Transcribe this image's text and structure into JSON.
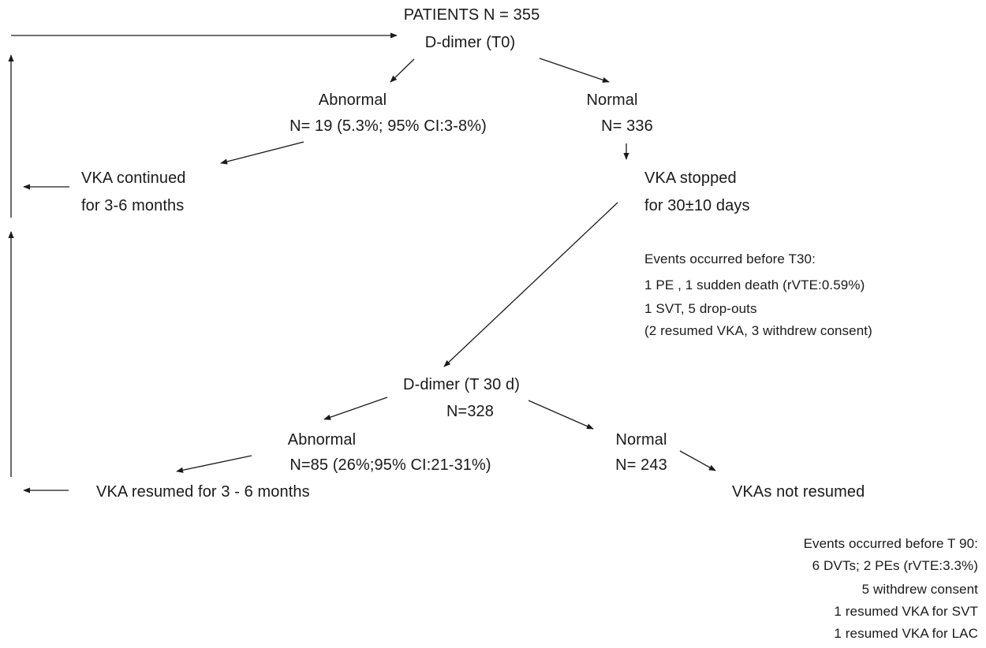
{
  "top": {
    "title": "PATIENTS N = 355",
    "ddimer_t0": "D-dimer (T0)"
  },
  "t0_abnormal": {
    "label": "Abnormal",
    "count": "N= 19 (5.3%; 95% CI:3-8%)"
  },
  "t0_normal": {
    "label": "Normal",
    "count": "N= 336"
  },
  "vka_continued": {
    "line1": "VKA continued",
    "line2": "for 3-6 months"
  },
  "vka_stopped": {
    "line1": "VKA stopped",
    "line2": "for 30±10 days"
  },
  "events_t30": {
    "heading": "Events occurred before T30:",
    "lines": [
      "1 PE , 1 sudden death (rVTE:0.59%)",
      "1 SVT, 5 drop-outs",
      "(2 resumed VKA, 3 withdrew consent)"
    ]
  },
  "ddimer_t30": {
    "label": "D-dimer  (T 30 d)",
    "count": "N=328"
  },
  "t30_abnormal": {
    "label": "Abnormal",
    "count": "N=85 (26%;95% CI:21-31%)"
  },
  "t30_normal": {
    "label": "Normal",
    "count": "N= 243"
  },
  "vka_resumed": "VKA resumed for 3 - 6 months",
  "vkas_not_resumed": "VKAs not resumed",
  "events_t90": {
    "heading": "Events occurred before T 90:",
    "lines": [
      "6 DVTs; 2 PEs (rVTE:3.3%)",
      "5 withdrew consent",
      "1 resumed VKA for SVT",
      "1 resumed VKA for LAC"
    ]
  }
}
